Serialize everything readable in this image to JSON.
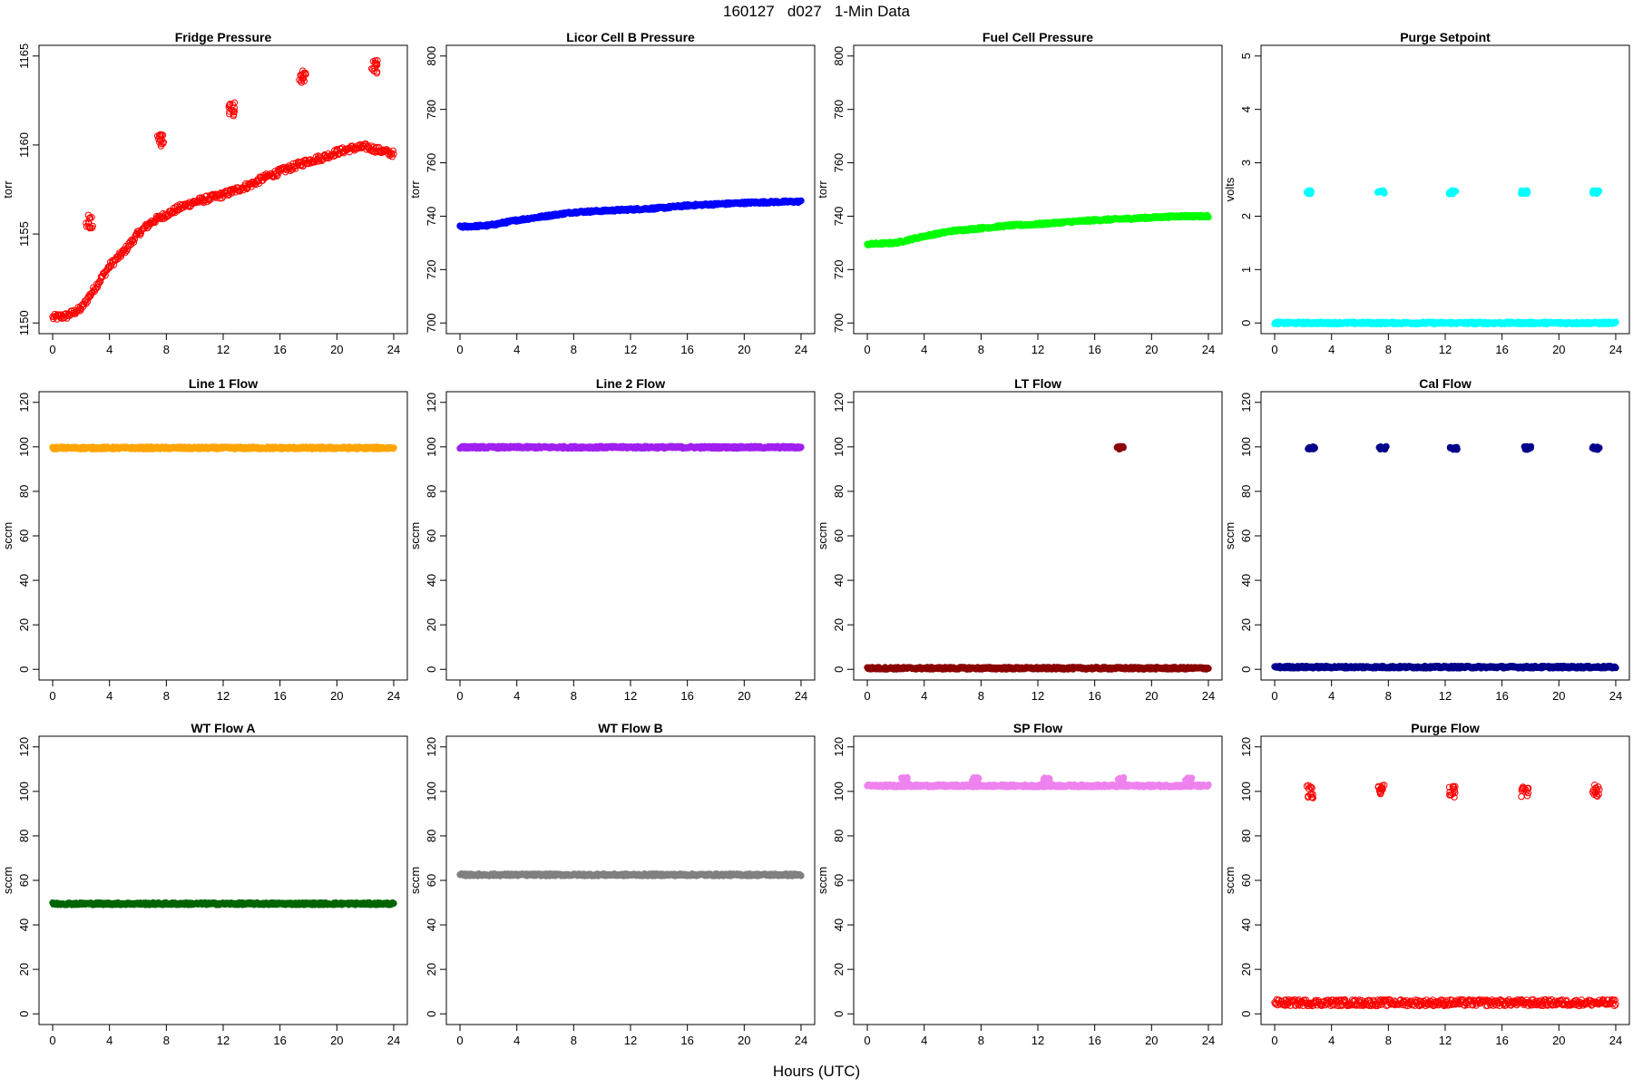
{
  "title": "160127   d027   1-Min Data",
  "xlabel": "Hours (UTC)",
  "chart_data": [
    {
      "type": "scatter",
      "title": "Fridge Pressure",
      "ylabel": "torr",
      "xlim": [
        0,
        24
      ],
      "ylim": [
        1150,
        1165
      ],
      "xticks": [
        0,
        4,
        8,
        12,
        16,
        20,
        24
      ],
      "yticks": [
        1150,
        1155,
        1160,
        1165
      ],
      "color": "#ff0000",
      "marker": "open",
      "trend": [
        [
          0,
          1150.3
        ],
        [
          1,
          1150.4
        ],
        [
          2,
          1150.8
        ],
        [
          3,
          1152.0
        ],
        [
          4,
          1153.2
        ],
        [
          5,
          1154.0
        ],
        [
          6,
          1155.0
        ],
        [
          7,
          1155.7
        ],
        [
          8,
          1156.1
        ],
        [
          9,
          1156.5
        ],
        [
          10,
          1156.8
        ],
        [
          11,
          1157.0
        ],
        [
          12,
          1157.2
        ],
        [
          13,
          1157.5
        ],
        [
          14,
          1157.8
        ],
        [
          15,
          1158.2
        ],
        [
          16,
          1158.5
        ],
        [
          17,
          1158.8
        ],
        [
          18,
          1159.1
        ],
        [
          19,
          1159.3
        ],
        [
          20,
          1159.6
        ],
        [
          21,
          1159.8
        ],
        [
          22,
          1159.9
        ],
        [
          23,
          1159.7
        ],
        [
          24,
          1159.5
        ]
      ],
      "clusters": [
        [
          2.6,
          1155.7
        ],
        [
          7.6,
          1160.3
        ],
        [
          12.6,
          1162.0
        ],
        [
          17.6,
          1163.8
        ],
        [
          22.6,
          1164.4
        ]
      ]
    },
    {
      "type": "scatter",
      "title": "Licor Cell B Pressure",
      "ylabel": "torr",
      "xlim": [
        0,
        24
      ],
      "ylim": [
        700,
        800
      ],
      "xticks": [
        0,
        4,
        8,
        12,
        16,
        20,
        24
      ],
      "yticks": [
        700,
        720,
        740,
        760,
        780,
        800
      ],
      "color": "#0000ff",
      "trend": [
        [
          0,
          736
        ],
        [
          2,
          736.5
        ],
        [
          4,
          738.5
        ],
        [
          6,
          740
        ],
        [
          8,
          741.5
        ],
        [
          10,
          742
        ],
        [
          12,
          742.5
        ],
        [
          14,
          743
        ],
        [
          16,
          744
        ],
        [
          18,
          744.5
        ],
        [
          20,
          745
        ],
        [
          22,
          745.3
        ],
        [
          24,
          745.5
        ]
      ]
    },
    {
      "type": "scatter",
      "title": "Fuel Cell Pressure",
      "ylabel": "torr",
      "xlim": [
        0,
        24
      ],
      "ylim": [
        700,
        800
      ],
      "xticks": [
        0,
        4,
        8,
        12,
        16,
        20,
        24
      ],
      "yticks": [
        700,
        720,
        740,
        760,
        780,
        800
      ],
      "color": "#00ff00",
      "trend": [
        [
          0,
          729.5
        ],
        [
          2,
          730
        ],
        [
          4,
          732.5
        ],
        [
          6,
          734.5
        ],
        [
          8,
          735.5
        ],
        [
          10,
          736.5
        ],
        [
          12,
          737
        ],
        [
          14,
          737.8
        ],
        [
          16,
          738.5
        ],
        [
          18,
          739
        ],
        [
          20,
          739.5
        ],
        [
          22,
          740
        ],
        [
          24,
          740
        ]
      ]
    },
    {
      "type": "scatter",
      "title": "Purge Setpoint",
      "ylabel": "volts",
      "xlim": [
        0,
        24
      ],
      "ylim": [
        0,
        5
      ],
      "xticks": [
        0,
        4,
        8,
        12,
        16,
        20,
        24
      ],
      "yticks": [
        0,
        1,
        2,
        3,
        4,
        5
      ],
      "color": "#00ffff",
      "trend": [
        [
          0,
          0
        ],
        [
          24,
          0
        ]
      ],
      "clusters": [
        [
          2.5,
          2.45
        ],
        [
          7.5,
          2.45
        ],
        [
          12.5,
          2.45
        ],
        [
          17.6,
          2.45
        ],
        [
          22.6,
          2.45
        ]
      ]
    },
    {
      "type": "scatter",
      "title": "Line 1 Flow",
      "ylabel": "sccm",
      "xlim": [
        0,
        24
      ],
      "ylim": [
        0,
        120
      ],
      "xticks": [
        0,
        4,
        8,
        12,
        16,
        20,
        24
      ],
      "yticks": [
        0,
        20,
        40,
        60,
        80,
        100,
        120
      ],
      "color": "#ffa500",
      "trend": [
        [
          0,
          99.5
        ],
        [
          24,
          99.5
        ]
      ]
    },
    {
      "type": "scatter",
      "title": "Line 2 Flow",
      "ylabel": "sccm",
      "xlim": [
        0,
        24
      ],
      "ylim": [
        0,
        120
      ],
      "xticks": [
        0,
        4,
        8,
        12,
        16,
        20,
        24
      ],
      "yticks": [
        0,
        20,
        40,
        60,
        80,
        100,
        120
      ],
      "color": "#a020f0",
      "trend": [
        [
          0,
          99.8
        ],
        [
          24,
          99.8
        ]
      ]
    },
    {
      "type": "scatter",
      "title": "LT Flow",
      "ylabel": "sccm",
      "xlim": [
        0,
        24
      ],
      "ylim": [
        0,
        120
      ],
      "xticks": [
        0,
        4,
        8,
        12,
        16,
        20,
        24
      ],
      "yticks": [
        0,
        20,
        40,
        60,
        80,
        100,
        120
      ],
      "color": "#8b0000",
      "trend": [
        [
          0,
          0.5
        ],
        [
          24,
          0.5
        ]
      ],
      "clusters": [
        [
          17.8,
          99.5
        ]
      ]
    },
    {
      "type": "scatter",
      "title": "Cal Flow",
      "ylabel": "sccm",
      "xlim": [
        0,
        24
      ],
      "ylim": [
        0,
        120
      ],
      "xticks": [
        0,
        4,
        8,
        12,
        16,
        20,
        24
      ],
      "yticks": [
        0,
        20,
        40,
        60,
        80,
        100,
        120
      ],
      "color": "#00008b",
      "trend": [
        [
          0,
          1
        ],
        [
          24,
          1
        ]
      ],
      "clusters": [
        [
          2.6,
          99.5
        ],
        [
          7.6,
          99.5
        ],
        [
          12.6,
          99.5
        ],
        [
          17.8,
          99.5
        ],
        [
          22.6,
          99.5
        ]
      ]
    },
    {
      "type": "scatter",
      "title": "WT Flow A",
      "ylabel": "sccm",
      "xlim": [
        0,
        24
      ],
      "ylim": [
        0,
        120
      ],
      "xticks": [
        0,
        4,
        8,
        12,
        16,
        20,
        24
      ],
      "yticks": [
        0,
        20,
        40,
        60,
        80,
        100,
        120
      ],
      "color": "#006400",
      "trend": [
        [
          0,
          49.5
        ],
        [
          24,
          49.5
        ]
      ]
    },
    {
      "type": "scatter",
      "title": "WT Flow B",
      "ylabel": "sccm",
      "xlim": [
        0,
        24
      ],
      "ylim": [
        0,
        120
      ],
      "xticks": [
        0,
        4,
        8,
        12,
        16,
        20,
        24
      ],
      "yticks": [
        0,
        20,
        40,
        60,
        80,
        100,
        120
      ],
      "color": "#808080",
      "trend": [
        [
          0,
          62.5
        ],
        [
          24,
          62.5
        ]
      ]
    },
    {
      "type": "scatter",
      "title": "SP Flow",
      "ylabel": "sccm",
      "xlim": [
        0,
        24
      ],
      "ylim": [
        0,
        120
      ],
      "xticks": [
        0,
        4,
        8,
        12,
        16,
        20,
        24
      ],
      "yticks": [
        0,
        20,
        40,
        60,
        80,
        100,
        120
      ],
      "color": "#ee82ee",
      "trend": [
        [
          0,
          102.5
        ],
        [
          24,
          102.5
        ]
      ],
      "clusters": [
        [
          2.6,
          105.5
        ],
        [
          7.6,
          105.5
        ],
        [
          12.6,
          105.5
        ],
        [
          17.8,
          105.5
        ],
        [
          22.6,
          105.5
        ]
      ]
    },
    {
      "type": "scatter",
      "title": "Purge Flow",
      "ylabel": "sccm",
      "xlim": [
        0,
        24
      ],
      "ylim": [
        0,
        120
      ],
      "xticks": [
        0,
        4,
        8,
        12,
        16,
        20,
        24
      ],
      "yticks": [
        0,
        20,
        40,
        60,
        80,
        100,
        120
      ],
      "color": "#ff0000",
      "marker": "open",
      "trend": [
        [
          0,
          5
        ],
        [
          24,
          5
        ]
      ],
      "clusters": [
        [
          2.5,
          100
        ],
        [
          7.5,
          100
        ],
        [
          12.5,
          100
        ],
        [
          17.6,
          100
        ],
        [
          22.6,
          100
        ]
      ]
    }
  ]
}
